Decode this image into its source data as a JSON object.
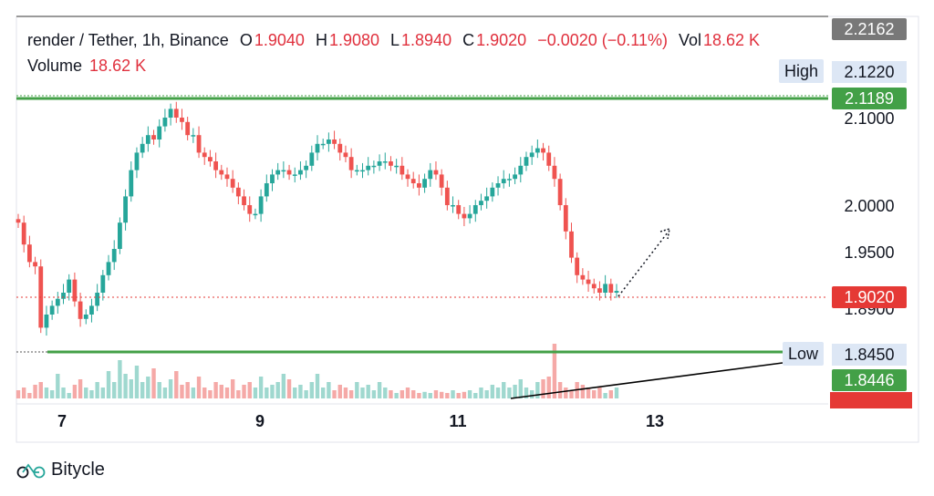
{
  "legend": {
    "symbol": "render / Tether, 1h, Binance",
    "o_label": "O",
    "o_value": "1.9040",
    "h_label": "H",
    "h_value": "1.9080",
    "l_label": "L",
    "l_value": "1.8940",
    "c_label": "C",
    "c_value": "1.9020",
    "change": "−0.0020 (−0.11%)",
    "vol_label": "Vol",
    "vol_value": "18.62 K",
    "volume_label": "Volume",
    "volume_value": "18.62 K"
  },
  "price_labels": {
    "top": "2.2162",
    "high_value": "2.1220",
    "green_line": "2.1189",
    "current": "1.9020",
    "low_value": "1.8450",
    "low_line": "1.8446",
    "hidden_under_current": "1.8900"
  },
  "tags": {
    "high": "High",
    "low": "Low"
  },
  "brand": "Bitycle",
  "colors": {
    "up": "#26a69a",
    "down": "#ef5350",
    "level_line": "#43a047",
    "current": "#e53935",
    "gray_tag": "#787878"
  },
  "chart_data": {
    "type": "candlestick",
    "yticks": [
      "2.1000",
      "2.0000",
      "1.9500",
      "1.8900"
    ],
    "xticks": [
      "7",
      "9",
      "11",
      "13"
    ],
    "ylim": [
      1.84,
      2.13
    ],
    "levels": {
      "high": 2.1189,
      "low": 1.8446,
      "current": 1.902
    },
    "close_path": [
      1.98,
      1.955,
      1.935,
      1.93,
      1.86,
      1.875,
      1.885,
      1.893,
      1.9,
      1.915,
      1.89,
      1.87,
      1.875,
      1.885,
      1.9,
      1.92,
      1.935,
      1.95,
      1.98,
      2.01,
      2.04,
      2.06,
      2.07,
      2.08,
      2.075,
      2.09,
      2.1,
      2.11,
      2.1,
      2.095,
      2.08,
      2.08,
      2.06,
      2.055,
      2.05,
      2.04,
      2.035,
      2.03,
      2.02,
      2.01,
      2.0,
      1.99,
      1.99,
      2.01,
      2.025,
      2.035,
      2.04,
      2.04,
      2.035,
      2.035,
      2.04,
      2.045,
      2.06,
      2.07,
      2.07,
      2.075,
      2.07,
      2.06,
      2.055,
      2.04,
      2.04,
      2.04,
      2.045,
      2.045,
      2.05,
      2.05,
      2.045,
      2.045,
      2.035,
      2.03,
      2.025,
      2.02,
      2.03,
      2.04,
      2.035,
      2.02,
      2.0,
      2.0,
      1.99,
      1.985,
      1.99,
      2.0,
      2.005,
      2.01,
      2.02,
      2.025,
      2.03,
      2.03,
      2.035,
      2.045,
      2.055,
      2.06,
      2.065,
      2.06,
      2.045,
      2.03,
      2.0,
      1.97,
      1.94,
      1.92,
      1.915,
      1.91,
      1.905,
      1.9,
      1.91,
      1.9,
      1.902
    ],
    "volume_profile": [
      0.15,
      0.2,
      0.1,
      0.25,
      0.3,
      0.2,
      0.15,
      0.45,
      0.2,
      0.1,
      0.25,
      0.35,
      0.2,
      0.15,
      0.3,
      0.2,
      0.5,
      0.3,
      0.7,
      0.45,
      0.35,
      0.6,
      0.3,
      0.4,
      0.55,
      0.3,
      0.2,
      0.35,
      0.5,
      0.25,
      0.3,
      0.2,
      0.4,
      0.2,
      0.15,
      0.3,
      0.25,
      0.2,
      0.35,
      0.15,
      0.25,
      0.3,
      0.2,
      0.4,
      0.2,
      0.25,
      0.3,
      0.45,
      0.35,
      0.2,
      0.25,
      0.15,
      0.3,
      0.45,
      0.2,
      0.3,
      0.15,
      0.25,
      0.2,
      0.15,
      0.3,
      0.2,
      0.25,
      0.15,
      0.3,
      0.2,
      0.15,
      0.1,
      0.15,
      0.2,
      0.15,
      0.1,
      0.12,
      0.1,
      0.15,
      0.12,
      0.1,
      0.15,
      0.1,
      0.12,
      0.15,
      0.1,
      0.2,
      0.15,
      0.25,
      0.2,
      0.3,
      0.2,
      0.25,
      0.35,
      0.2,
      0.15,
      0.3,
      0.35,
      0.4,
      1.0,
      0.3,
      0.2,
      0.15,
      0.3,
      0.25,
      0.2,
      0.15,
      0.2,
      0.1
    ]
  }
}
